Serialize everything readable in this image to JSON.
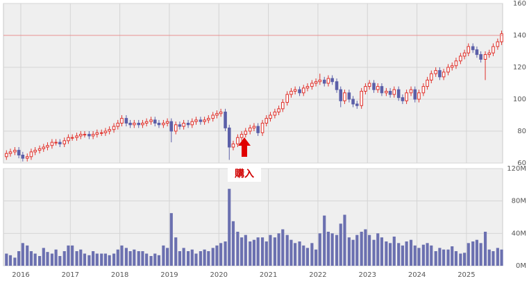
{
  "chart_data": {
    "type": "candlestick",
    "x": [
      2015.71,
      2015.79,
      2015.88,
      2015.96,
      2016.04,
      2016.13,
      2016.21,
      2016.29,
      2016.38,
      2016.46,
      2016.54,
      2016.63,
      2016.71,
      2016.79,
      2016.88,
      2016.96,
      2017.04,
      2017.13,
      2017.21,
      2017.29,
      2017.38,
      2017.46,
      2017.54,
      2017.63,
      2017.71,
      2017.79,
      2017.88,
      2017.96,
      2018.04,
      2018.13,
      2018.21,
      2018.29,
      2018.38,
      2018.46,
      2018.54,
      2018.63,
      2018.71,
      2018.79,
      2018.88,
      2018.96,
      2019.04,
      2019.13,
      2019.21,
      2019.29,
      2019.38,
      2019.46,
      2019.54,
      2019.63,
      2019.71,
      2019.79,
      2019.88,
      2019.96,
      2020.04,
      2020.13,
      2020.21,
      2020.29,
      2020.38,
      2020.46,
      2020.54,
      2020.63,
      2020.71,
      2020.79,
      2020.88,
      2020.96,
      2021.04,
      2021.13,
      2021.21,
      2021.29,
      2021.38,
      2021.46,
      2021.54,
      2021.63,
      2021.71,
      2021.79,
      2021.88,
      2021.96,
      2022.04,
      2022.13,
      2022.21,
      2022.29,
      2022.38,
      2022.46,
      2022.54,
      2022.63,
      2022.71,
      2022.79,
      2022.88,
      2022.96,
      2023.04,
      2023.13,
      2023.21,
      2023.29,
      2023.38,
      2023.46,
      2023.54,
      2023.63,
      2023.71,
      2023.79,
      2023.88,
      2023.96,
      2024.04,
      2024.13,
      2024.21,
      2024.29,
      2024.38,
      2024.46,
      2024.54,
      2024.63,
      2024.71,
      2024.79,
      2024.88,
      2024.96,
      2025.04,
      2025.13,
      2025.21,
      2025.29,
      2025.38,
      2025.46,
      2025.54,
      2025.63,
      2025.71
    ],
    "open": [
      64,
      66,
      67,
      68,
      65,
      63,
      64,
      67,
      68,
      69,
      70,
      71,
      73,
      73,
      72,
      74,
      76,
      76,
      77,
      78,
      78,
      77,
      78,
      79,
      79,
      80,
      81,
      83,
      85,
      88,
      85,
      84,
      85,
      84,
      85,
      86,
      87,
      85,
      84,
      85,
      86,
      80,
      84,
      83,
      85,
      84,
      86,
      87,
      86,
      87,
      88,
      90,
      91,
      92,
      82,
      70,
      72,
      76,
      78,
      80,
      82,
      83,
      79,
      85,
      88,
      90,
      92,
      94,
      98,
      103,
      105,
      106,
      104,
      107,
      108,
      110,
      111,
      112,
      110,
      113,
      111,
      106,
      99,
      104,
      100,
      97,
      96,
      105,
      108,
      110,
      106,
      108,
      104,
      105,
      103,
      106,
      101,
      99,
      104,
      106,
      100,
      104,
      108,
      112,
      116,
      118,
      114,
      117,
      120,
      121,
      124,
      127,
      129,
      133,
      131,
      128,
      125,
      128,
      129,
      133,
      136
    ],
    "high": [
      68,
      69,
      70,
      70,
      67,
      66,
      69,
      70,
      71,
      72,
      73,
      75,
      75,
      75,
      76,
      78,
      78,
      79,
      80,
      80,
      80,
      80,
      81,
      81,
      82,
      83,
      85,
      87,
      90,
      90,
      87,
      87,
      87,
      87,
      88,
      89,
      89,
      87,
      87,
      88,
      88,
      86,
      86,
      87,
      87,
      88,
      89,
      89,
      89,
      90,
      92,
      93,
      94,
      94,
      84,
      74,
      78,
      80,
      82,
      84,
      85,
      85,
      87,
      90,
      92,
      94,
      96,
      100,
      105,
      107,
      108,
      108,
      109,
      110,
      112,
      113,
      116,
      114,
      115,
      115,
      113,
      108,
      106,
      106,
      102,
      99,
      107,
      110,
      112,
      112,
      110,
      110,
      107,
      107,
      108,
      108,
      103,
      106,
      108,
      108,
      106,
      110,
      114,
      118,
      120,
      120,
      119,
      122,
      123,
      126,
      129,
      131,
      135,
      135,
      133,
      130,
      130,
      131,
      135,
      138,
      143
    ],
    "low": [
      62,
      64,
      65,
      63,
      61,
      61,
      62,
      65,
      66,
      67,
      68,
      69,
      71,
      70,
      70,
      72,
      74,
      74,
      75,
      76,
      75,
      75,
      76,
      77,
      77,
      78,
      79,
      81,
      83,
      83,
      82,
      82,
      82,
      82,
      83,
      84,
      83,
      82,
      82,
      83,
      73,
      78,
      81,
      81,
      82,
      82,
      84,
      84,
      84,
      85,
      86,
      88,
      89,
      80,
      62,
      68,
      70,
      74,
      76,
      78,
      80,
      77,
      77,
      83,
      86,
      88,
      90,
      92,
      96,
      101,
      103,
      102,
      102,
      105,
      106,
      108,
      109,
      108,
      108,
      109,
      104,
      95,
      97,
      98,
      95,
      94,
      94,
      103,
      106,
      104,
      104,
      102,
      102,
      101,
      101,
      99,
      97,
      97,
      102,
      98,
      98,
      102,
      106,
      110,
      114,
      112,
      112,
      115,
      118,
      119,
      122,
      125,
      127,
      129,
      126,
      123,
      112,
      126,
      127,
      131,
      134
    ],
    "close": [
      66,
      67,
      68,
      65,
      63,
      64,
      67,
      68,
      69,
      70,
      71,
      73,
      73,
      72,
      74,
      76,
      76,
      77,
      78,
      78,
      77,
      78,
      79,
      79,
      80,
      81,
      83,
      85,
      88,
      85,
      84,
      85,
      84,
      85,
      86,
      87,
      85,
      84,
      85,
      86,
      80,
      84,
      83,
      85,
      84,
      86,
      87,
      86,
      87,
      88,
      90,
      91,
      92,
      82,
      70,
      72,
      76,
      78,
      80,
      82,
      83,
      79,
      85,
      88,
      90,
      92,
      94,
      98,
      103,
      105,
      106,
      104,
      107,
      108,
      110,
      111,
      112,
      110,
      113,
      111,
      106,
      99,
      104,
      100,
      97,
      96,
      105,
      108,
      110,
      106,
      108,
      104,
      105,
      103,
      106,
      101,
      99,
      104,
      106,
      100,
      104,
      108,
      112,
      116,
      118,
      114,
      117,
      120,
      121,
      124,
      127,
      129,
      133,
      131,
      128,
      125,
      128,
      129,
      133,
      136,
      141
    ],
    "volume": [
      15,
      13,
      10,
      18,
      28,
      25,
      18,
      15,
      12,
      22,
      17,
      15,
      20,
      12,
      18,
      25,
      25,
      18,
      20,
      15,
      13,
      18,
      15,
      15,
      15,
      13,
      15,
      20,
      25,
      22,
      18,
      20,
      18,
      18,
      15,
      12,
      15,
      13,
      25,
      22,
      65,
      35,
      18,
      22,
      18,
      20,
      15,
      18,
      20,
      18,
      22,
      25,
      28,
      30,
      95,
      55,
      42,
      35,
      38,
      30,
      32,
      35,
      35,
      30,
      38,
      35,
      40,
      45,
      38,
      32,
      28,
      30,
      25,
      22,
      28,
      20,
      40,
      62,
      42,
      40,
      38,
      52,
      63,
      35,
      32,
      38,
      42,
      45,
      38,
      32,
      40,
      35,
      30,
      28,
      36,
      28,
      25,
      30,
      32,
      25,
      22,
      26,
      28,
      25,
      18,
      22,
      20,
      20,
      24,
      18,
      15,
      16,
      28,
      30,
      32,
      28,
      42,
      20,
      18,
      22,
      20
    ],
    "up_color": "#e0302a",
    "down_color": "#5b5fa8",
    "volume_color": "#6b70b0",
    "reference_line": 140,
    "reference_color": "#e89090",
    "annotation": "購入",
    "xlim": [
      2015.65,
      2025.73
    ],
    "xticks": [
      2016,
      2017,
      2018,
      2019,
      2020,
      2021,
      2022,
      2023,
      2024,
      2025
    ],
    "ylim": [
      60,
      160
    ],
    "yticks": [
      60,
      80,
      100,
      120,
      140,
      160
    ],
    "volume_ylim": [
      0,
      120
    ],
    "volume_yticks": [
      {
        "value": 0,
        "label": "0M"
      },
      {
        "value": 40,
        "label": "40M"
      },
      {
        "value": 80,
        "label": "80M"
      },
      {
        "value": 120,
        "label": "120M"
      }
    ],
    "grid": true
  }
}
